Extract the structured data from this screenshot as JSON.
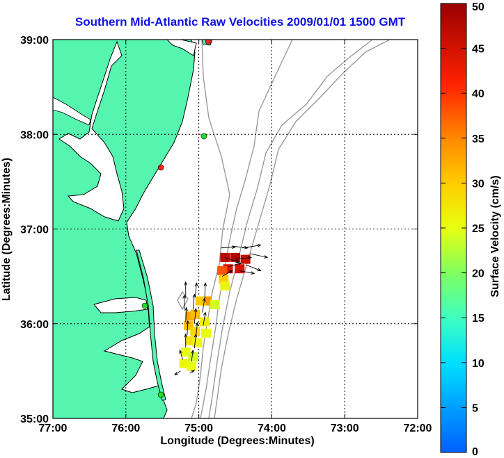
{
  "title": "Southern Mid-Atlantic Raw Velocities 2009/01/01 1500 GMT",
  "axes": {
    "xlabel": "Longitude (Degrees:Minutes)",
    "ylabel": "Latitude (Degrees:Minutes)",
    "x_ticks": [
      "77:00",
      "76:00",
      "75:00",
      "74:00",
      "73:00",
      "72:00"
    ],
    "y_ticks": [
      "39:00",
      "38:00",
      "37:00",
      "36:00",
      "35:00"
    ]
  },
  "colorbar": {
    "label": "Surface Velocity (cm/s)",
    "ticks": [
      "50",
      "45",
      "40",
      "35",
      "30",
      "25",
      "20",
      "15",
      "10",
      "5",
      "0"
    ]
  },
  "colors": {
    "land": "#55f5b0",
    "coast": "#000000",
    "bathymetry": "#9a9a9a",
    "station_green": "#22dd22",
    "station_red": "#ff2222",
    "title": "#1010e6"
  },
  "chart_data": {
    "type": "map",
    "xlim": [
      -77,
      -72
    ],
    "ylim": [
      35,
      39
    ],
    "grid": true,
    "colorbar_range": [
      0,
      50
    ],
    "stations": [
      {
        "lon": -74.87,
        "lat": 38.98,
        "color": "red"
      },
      {
        "lon": -74.93,
        "lat": 37.98,
        "color": "green"
      },
      {
        "lon": -75.52,
        "lat": 37.65,
        "color": "red"
      },
      {
        "lon": -75.74,
        "lat": 36.19,
        "color": "green"
      },
      {
        "lon": -75.52,
        "lat": 35.25,
        "color": "green"
      }
    ],
    "velocity_cells": [
      {
        "lon": -74.64,
        "lat": 36.7,
        "speed": 47
      },
      {
        "lon": -74.5,
        "lat": 36.7,
        "speed": 48
      },
      {
        "lon": -74.36,
        "lat": 36.68,
        "speed": 46
      },
      {
        "lon": -74.6,
        "lat": 36.58,
        "speed": 44
      },
      {
        "lon": -74.44,
        "lat": 36.58,
        "speed": 45
      },
      {
        "lon": -74.68,
        "lat": 36.56,
        "speed": 38
      },
      {
        "lon": -74.66,
        "lat": 36.47,
        "speed": 30
      },
      {
        "lon": -74.64,
        "lat": 36.4,
        "speed": 26
      },
      {
        "lon": -74.9,
        "lat": 36.24,
        "speed": 34
      },
      {
        "lon": -74.98,
        "lat": 36.24,
        "speed": 30
      },
      {
        "lon": -74.78,
        "lat": 36.2,
        "speed": 24
      },
      {
        "lon": -75.12,
        "lat": 36.08,
        "speed": 33
      },
      {
        "lon": -75.05,
        "lat": 36.1,
        "speed": 31
      },
      {
        "lon": -74.92,
        "lat": 36.02,
        "speed": 27
      },
      {
        "lon": -75.14,
        "lat": 35.98,
        "speed": 31
      },
      {
        "lon": -75.05,
        "lat": 35.92,
        "speed": 29
      },
      {
        "lon": -74.9,
        "lat": 35.9,
        "speed": 25
      },
      {
        "lon": -75.12,
        "lat": 35.82,
        "speed": 28
      },
      {
        "lon": -75.02,
        "lat": 35.8,
        "speed": 26
      },
      {
        "lon": -75.18,
        "lat": 35.7,
        "speed": 25
      },
      {
        "lon": -75.08,
        "lat": 35.65,
        "speed": 24
      },
      {
        "lon": -75.2,
        "lat": 35.58,
        "speed": 26
      },
      {
        "lon": -75.1,
        "lat": 35.55,
        "speed": 25
      }
    ],
    "vectors": [
      {
        "lon": -74.7,
        "lat": 36.8,
        "u": 0.2,
        "v": 0.01
      },
      {
        "lon": -74.55,
        "lat": 36.82,
        "u": 0.22,
        "v": -0.02
      },
      {
        "lon": -74.4,
        "lat": 36.8,
        "u": 0.25,
        "v": 0.03
      },
      {
        "lon": -74.3,
        "lat": 36.74,
        "u": 0.24,
        "v": -0.04
      },
      {
        "lon": -74.65,
        "lat": 36.7,
        "u": 0.2,
        "v": -0.05
      },
      {
        "lon": -74.5,
        "lat": 36.68,
        "u": 0.22,
        "v": 0.02
      },
      {
        "lon": -74.35,
        "lat": 36.62,
        "u": 0.2,
        "v": -0.06
      },
      {
        "lon": -74.6,
        "lat": 36.6,
        "u": 0.18,
        "v": 0.04
      },
      {
        "lon": -74.45,
        "lat": 36.56,
        "u": 0.21,
        "v": -0.03
      },
      {
        "lon": -74.68,
        "lat": 36.5,
        "u": 0.14,
        "v": 0.06
      },
      {
        "lon": -75.18,
        "lat": 36.28,
        "u": 0.0,
        "v": 0.16
      },
      {
        "lon": -75.05,
        "lat": 36.28,
        "u": 0.02,
        "v": 0.15
      },
      {
        "lon": -74.92,
        "lat": 36.26,
        "u": 0.01,
        "v": 0.17
      },
      {
        "lon": -75.2,
        "lat": 36.15,
        "u": 0.0,
        "v": 0.15
      },
      {
        "lon": -75.08,
        "lat": 36.15,
        "u": 0.02,
        "v": 0.16
      },
      {
        "lon": -74.95,
        "lat": 36.12,
        "u": 0.03,
        "v": 0.15
      },
      {
        "lon": -75.18,
        "lat": 36.02,
        "u": 0.01,
        "v": 0.15
      },
      {
        "lon": -75.06,
        "lat": 36.0,
        "u": 0.02,
        "v": 0.16
      },
      {
        "lon": -74.94,
        "lat": 35.98,
        "u": 0.03,
        "v": 0.14
      },
      {
        "lon": -75.16,
        "lat": 35.88,
        "u": 0.01,
        "v": 0.15
      },
      {
        "lon": -75.04,
        "lat": 35.86,
        "u": 0.02,
        "v": 0.15
      },
      {
        "lon": -75.18,
        "lat": 35.75,
        "u": 0.0,
        "v": 0.14
      },
      {
        "lon": -75.06,
        "lat": 35.74,
        "u": 0.02,
        "v": 0.15
      },
      {
        "lon": -75.22,
        "lat": 35.62,
        "u": -0.04,
        "v": 0.1
      },
      {
        "lon": -75.1,
        "lat": 35.6,
        "u": 0.02,
        "v": 0.12
      },
      {
        "lon": -75.25,
        "lat": 35.5,
        "u": -0.08,
        "v": -0.04
      },
      {
        "lon": -75.12,
        "lat": 35.48,
        "u": 0.06,
        "v": 0.03
      }
    ]
  }
}
